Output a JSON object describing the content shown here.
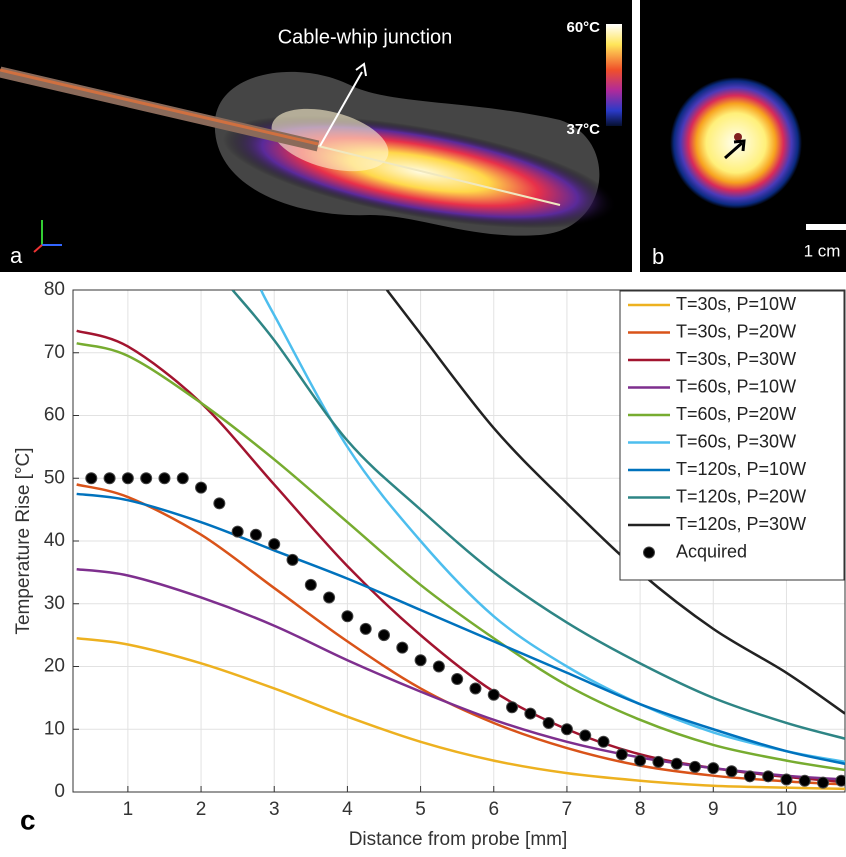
{
  "panel_a": {
    "label": "a",
    "annotation": "Cable-whip junction",
    "colorbar_max": "60°C",
    "colorbar_min": "37°C"
  },
  "panel_b": {
    "label": "b",
    "scale_bar": "1 cm"
  },
  "chart_data": {
    "type": "line",
    "panel_label": "c",
    "xlabel": "Distance from probe [mm]",
    "ylabel": "Temperature Rise [°C]",
    "xlim": [
      0.25,
      10.8
    ],
    "ylim": [
      0,
      80
    ],
    "xticks": [
      1,
      2,
      3,
      4,
      5,
      6,
      7,
      8,
      9,
      10
    ],
    "yticks": [
      0,
      10,
      20,
      30,
      40,
      50,
      60,
      70,
      80
    ],
    "grid": true,
    "legend": "top-right",
    "series": [
      {
        "name": "T=30s, P=10W",
        "color": "#EDB120",
        "x": [
          0.3,
          1,
          2,
          3,
          4,
          5,
          6,
          7,
          8,
          9,
          10,
          10.8
        ],
        "values": [
          24.5,
          23.5,
          20.5,
          16.5,
          12,
          8,
          5,
          3,
          1.8,
          1,
          0.7,
          0.5
        ]
      },
      {
        "name": "T=30s, P=20W",
        "color": "#D95319",
        "x": [
          0.3,
          1,
          2,
          3,
          4,
          5,
          6,
          7,
          8,
          9,
          10,
          10.8
        ],
        "values": [
          49,
          47,
          41,
          32.5,
          24,
          16.5,
          11,
          7,
          4.2,
          2.6,
          1.7,
          1.2
        ]
      },
      {
        "name": "T=30s, P=30W",
        "color": "#A2142F",
        "x": [
          0.3,
          1,
          2,
          3,
          4,
          5,
          6,
          7,
          8,
          9,
          10,
          10.8
        ],
        "values": [
          73.5,
          71,
          62,
          49,
          36,
          25,
          16,
          10,
          6,
          3.8,
          2.4,
          1.6
        ]
      },
      {
        "name": "T=60s, P=10W",
        "color": "#7E2F8E",
        "x": [
          0.3,
          1,
          2,
          3,
          4,
          5,
          6,
          7,
          8,
          9,
          10,
          10.8
        ],
        "values": [
          35.5,
          34.5,
          31,
          26.5,
          21,
          16,
          11.5,
          8,
          5.5,
          3.8,
          2.6,
          2
        ]
      },
      {
        "name": "T=60s, P=20W",
        "color": "#77AC30",
        "x": [
          0.3,
          1,
          2,
          3,
          4,
          5,
          6,
          7,
          8,
          9,
          10,
          10.8
        ],
        "values": [
          71.5,
          69.5,
          62,
          53,
          43,
          33,
          24.5,
          17,
          11.5,
          7.5,
          5,
          3.5
        ]
      },
      {
        "name": "T=60s, P=30W",
        "color": "#4DBEEE",
        "x": [
          2.82,
          3,
          4,
          5,
          6,
          7,
          8,
          9,
          10,
          10.8
        ],
        "values": [
          80,
          76,
          55,
          40,
          28,
          20,
          14,
          9.5,
          6.5,
          4.8
        ]
      },
      {
        "name": "T=120s, P=10W",
        "color": "#0072BD",
        "x": [
          0.3,
          1,
          2,
          3,
          4,
          5,
          6,
          7,
          8,
          9,
          10,
          10.8
        ],
        "values": [
          47.5,
          46.5,
          43,
          38.5,
          34,
          29,
          24,
          19,
          14,
          10,
          6.5,
          4.5
        ]
      },
      {
        "name": "T=120s, P=20W",
        "color": "#2E8585",
        "x": [
          2.43,
          3,
          4,
          5,
          6,
          7,
          8,
          9,
          10,
          10.8
        ],
        "values": [
          80,
          72,
          56,
          45,
          35,
          27,
          20.5,
          15,
          11,
          8.5
        ]
      },
      {
        "name": "T=120s, P=30W",
        "color": "#222222",
        "x": [
          4.54,
          5,
          6,
          7,
          8,
          9,
          10,
          10.8
        ],
        "values": [
          80,
          73,
          58,
          46,
          35,
          26,
          19,
          12.5
        ]
      },
      {
        "name": "Acquired",
        "color": "#000000",
        "style": "markers",
        "x": [
          0.5,
          0.75,
          1,
          1.25,
          1.5,
          1.75,
          2,
          2.25,
          2.5,
          2.75,
          3,
          3.25,
          3.5,
          3.75,
          4,
          4.25,
          4.5,
          4.75,
          5,
          5.25,
          5.5,
          5.75,
          6,
          6.25,
          6.5,
          6.75,
          7,
          7.25,
          7.5,
          7.75,
          8,
          8.25,
          8.5,
          8.75,
          9,
          9.25,
          9.5,
          9.75,
          10,
          10.25,
          10.5,
          10.75
        ],
        "values": [
          50,
          50,
          50,
          50,
          50,
          50,
          48.5,
          46,
          41.5,
          41,
          39.5,
          37,
          33,
          31,
          28,
          26,
          25,
          23,
          21,
          20,
          18,
          16.5,
          15.5,
          13.5,
          12.5,
          11,
          10,
          9,
          8,
          6,
          5,
          4.8,
          4.5,
          4,
          3.8,
          3.3,
          2.5,
          2.5,
          2,
          1.8,
          1.5,
          1.8
        ]
      }
    ]
  }
}
